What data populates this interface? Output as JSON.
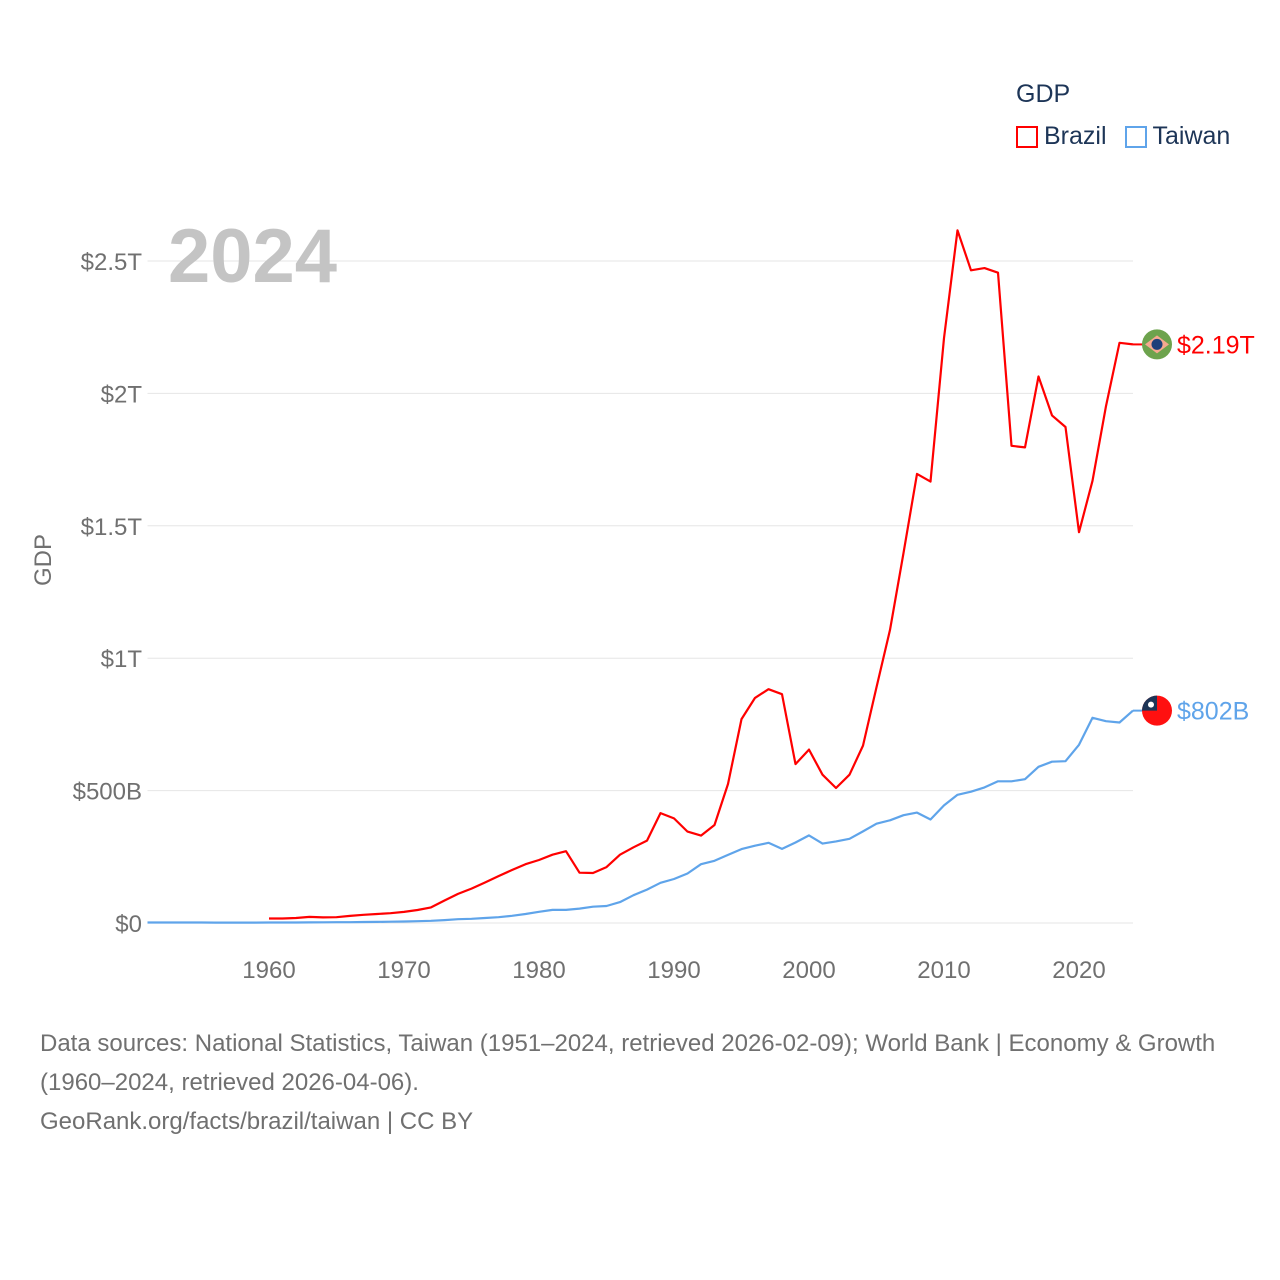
{
  "legend": {
    "title": "GDP",
    "items": [
      {
        "label": "Brazil",
        "color": "#ff0000"
      },
      {
        "label": "Taiwan",
        "color": "#5fa4ea"
      }
    ]
  },
  "year_watermark": "2024",
  "source": {
    "line1": "Data sources: National Statistics, Taiwan (1951–2024, retrieved 2026-02-09); World Bank | Economy & Growth (1960–2024, retrieved 2026-04-06).",
    "line2": "GeoRank.org/facts/brazil/taiwan | CC BY"
  },
  "chart_data": {
    "type": "line",
    "title": "",
    "xlabel": "",
    "ylabel": "GDP",
    "xlim": [
      1951,
      2024
    ],
    "ylim": [
      0,
      2.5
    ],
    "units": "trillion USD",
    "grid": true,
    "legend_position": "top-right",
    "x_ticks": [
      1960,
      1970,
      1980,
      1990,
      2000,
      2010,
      2020
    ],
    "y_ticks": [
      {
        "v": 0,
        "label": "$0"
      },
      {
        "v": 0.5,
        "label": "$500B"
      },
      {
        "v": 1,
        "label": "$1T"
      },
      {
        "v": 1.5,
        "label": "$1.5T"
      },
      {
        "v": 2,
        "label": "$2T"
      },
      {
        "v": 2.5,
        "label": "$2.5T"
      }
    ],
    "series": [
      {
        "name": "Brazil",
        "color": "#ff0000",
        "end_label": "$2.19T",
        "flag": "brazil-flag",
        "x": [
          1960,
          1961,
          1962,
          1963,
          1964,
          1965,
          1966,
          1967,
          1968,
          1969,
          1970,
          1971,
          1972,
          1973,
          1974,
          1975,
          1976,
          1977,
          1978,
          1979,
          1980,
          1981,
          1982,
          1983,
          1984,
          1985,
          1986,
          1987,
          1988,
          1989,
          1990,
          1991,
          1992,
          1993,
          1994,
          1995,
          1996,
          1997,
          1998,
          1999,
          2000,
          2001,
          2002,
          2003,
          2004,
          2005,
          2006,
          2007,
          2008,
          2009,
          2010,
          2011,
          2012,
          2013,
          2014,
          2015,
          2016,
          2017,
          2018,
          2019,
          2020,
          2021,
          2022,
          2023,
          2024
        ],
        "values": [
          0.017,
          0.017,
          0.019,
          0.023,
          0.021,
          0.022,
          0.027,
          0.031,
          0.034,
          0.037,
          0.042,
          0.049,
          0.059,
          0.085,
          0.11,
          0.13,
          0.153,
          0.177,
          0.2,
          0.222,
          0.238,
          0.258,
          0.271,
          0.19,
          0.189,
          0.211,
          0.258,
          0.286,
          0.311,
          0.415,
          0.395,
          0.345,
          0.33,
          0.37,
          0.525,
          0.77,
          0.85,
          0.883,
          0.864,
          0.6,
          0.655,
          0.56,
          0.51,
          0.56,
          0.67,
          0.89,
          1.107,
          1.397,
          1.696,
          1.667,
          2.209,
          2.616,
          2.465,
          2.473,
          2.456,
          1.802,
          1.796,
          2.064,
          1.917,
          1.873,
          1.476,
          1.67,
          1.952,
          2.191,
          2.185
        ]
      },
      {
        "name": "Taiwan",
        "color": "#5fa4ea",
        "end_label": "$802B",
        "flag": "taiwan-flag",
        "x": [
          1951,
          1952,
          1953,
          1954,
          1955,
          1956,
          1957,
          1958,
          1959,
          1960,
          1961,
          1962,
          1963,
          1964,
          1965,
          1966,
          1967,
          1968,
          1969,
          1970,
          1971,
          1972,
          1973,
          1974,
          1975,
          1976,
          1977,
          1978,
          1979,
          1980,
          1981,
          1982,
          1983,
          1984,
          1985,
          1986,
          1987,
          1988,
          1989,
          1990,
          1991,
          1992,
          1993,
          1994,
          1995,
          1996,
          1997,
          1998,
          1999,
          2000,
          2001,
          2002,
          2003,
          2004,
          2005,
          2006,
          2007,
          2008,
          2009,
          2010,
          2011,
          2012,
          2013,
          2014,
          2015,
          2016,
          2017,
          2018,
          2019,
          2020,
          2021,
          2022,
          2023,
          2024
        ],
        "values": [
          0.0017,
          0.0017,
          0.0019,
          0.0018,
          0.0019,
          0.0014,
          0.0016,
          0.0016,
          0.0016,
          0.0017,
          0.0018,
          0.002,
          0.0022,
          0.0026,
          0.0029,
          0.0032,
          0.0037,
          0.0043,
          0.005,
          0.0058,
          0.0068,
          0.0082,
          0.011,
          0.0145,
          0.0157,
          0.0189,
          0.022,
          0.0272,
          0.0338,
          0.0423,
          0.0493,
          0.0496,
          0.0543,
          0.0614,
          0.0641,
          0.0789,
          0.105,
          0.126,
          0.152,
          0.166,
          0.187,
          0.222,
          0.235,
          0.257,
          0.279,
          0.292,
          0.303,
          0.28,
          0.304,
          0.331,
          0.3,
          0.308,
          0.318,
          0.346,
          0.375,
          0.388,
          0.407,
          0.417,
          0.391,
          0.444,
          0.484,
          0.496,
          0.512,
          0.535,
          0.535,
          0.543,
          0.59,
          0.609,
          0.611,
          0.673,
          0.775,
          0.762,
          0.757,
          0.802
        ]
      }
    ]
  }
}
